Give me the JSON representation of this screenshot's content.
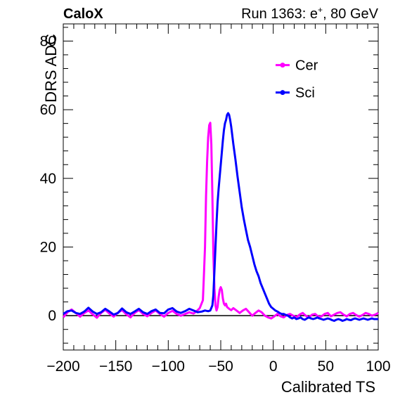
{
  "header": {
    "left_label": "CaloX",
    "right_label_prefix": "Run 1363: e",
    "right_label_sup": "+",
    "right_label_suffix": ", 80 GeV"
  },
  "chart_data": {
    "type": "line",
    "xlabel": "Calibrated TS",
    "ylabel": "DRS ADC",
    "xlim": [
      -200,
      100
    ],
    "ylim": [
      -10,
      85
    ],
    "x_ticks": [
      -200,
      -150,
      -100,
      -50,
      0,
      50,
      100
    ],
    "x_tick_labels": [
      "−200",
      "−150",
      "−100",
      "−50",
      "0",
      "50",
      "100"
    ],
    "y_ticks": [
      0,
      20,
      40,
      60,
      80
    ],
    "y_tick_labels": [
      "0",
      "20",
      "40",
      "60",
      "80"
    ],
    "zero_line": true,
    "grid": false,
    "legend_position": "top-right",
    "series": [
      {
        "name": "Cer",
        "color": "#ff00ff",
        "points": [
          [
            -200,
            -0.5
          ],
          [
            -196,
            1.0
          ],
          [
            -192,
            1.8
          ],
          [
            -188,
            0.8
          ],
          [
            -184,
            -0.3
          ],
          [
            -180,
            0.8
          ],
          [
            -176,
            1.5
          ],
          [
            -172,
            0.4
          ],
          [
            -168,
            -0.6
          ],
          [
            -164,
            0.8
          ],
          [
            -160,
            1.7
          ],
          [
            -156,
            0.6
          ],
          [
            -152,
            -0.3
          ],
          [
            -148,
            0.9
          ],
          [
            -144,
            1.6
          ],
          [
            -140,
            0.4
          ],
          [
            -136,
            -0.5
          ],
          [
            -132,
            0.8
          ],
          [
            -128,
            1.6
          ],
          [
            -124,
            0.5
          ],
          [
            -120,
            -0.2
          ],
          [
            -116,
            0.8
          ],
          [
            -112,
            1.5
          ],
          [
            -108,
            0.5
          ],
          [
            -104,
            -0.3
          ],
          [
            -100,
            0.8
          ],
          [
            -96,
            1.4
          ],
          [
            -92,
            0.5
          ],
          [
            -88,
            0.0
          ],
          [
            -84,
            0.5
          ],
          [
            -80,
            1.0
          ],
          [
            -76,
            0.6
          ],
          [
            -73,
            1.3
          ],
          [
            -70,
            2.2
          ],
          [
            -67,
            4.5
          ],
          [
            -66,
            12.0
          ],
          [
            -65,
            20.0
          ],
          [
            -64,
            35.0
          ],
          [
            -63,
            45.0
          ],
          [
            -62,
            52.0
          ],
          [
            -61,
            55.5
          ],
          [
            -60,
            56.2
          ],
          [
            -59,
            50.0
          ],
          [
            -58,
            35.0
          ],
          [
            -57,
            18.0
          ],
          [
            -56,
            8.0
          ],
          [
            -55,
            3.0
          ],
          [
            -54,
            1.5
          ],
          [
            -53,
            2.5
          ],
          [
            -52,
            5.5
          ],
          [
            -51,
            7.5
          ],
          [
            -50,
            8.3
          ],
          [
            -49,
            7.5
          ],
          [
            -48,
            5.0
          ],
          [
            -47,
            3.5
          ],
          [
            -46,
            3.0
          ],
          [
            -45,
            3.5
          ],
          [
            -44,
            2.5
          ],
          [
            -42,
            2.0
          ],
          [
            -40,
            1.6
          ],
          [
            -38,
            2.2
          ],
          [
            -35,
            1.5
          ],
          [
            -32,
            0.8
          ],
          [
            -29,
            1.5
          ],
          [
            -26,
            2.0
          ],
          [
            -23,
            1.0
          ],
          [
            -20,
            0.0
          ],
          [
            -17,
            0.8
          ],
          [
            -14,
            1.5
          ],
          [
            -11,
            1.0
          ],
          [
            -8,
            0.0
          ],
          [
            -5,
            -0.5
          ],
          [
            -2,
            -0.8
          ],
          [
            1,
            -0.2
          ],
          [
            4,
            0.5
          ],
          [
            7,
            -0.2
          ],
          [
            10,
            -0.5
          ],
          [
            13,
            0.2
          ],
          [
            16,
            0.5
          ],
          [
            19,
            0.0
          ],
          [
            22,
            -0.5
          ],
          [
            25,
            0.3
          ],
          [
            28,
            0.8
          ],
          [
            31,
            0.0
          ],
          [
            34,
            -0.5
          ],
          [
            37,
            0.3
          ],
          [
            40,
            0.5
          ],
          [
            43,
            -0.3
          ],
          [
            46,
            -0.2
          ],
          [
            49,
            0.5
          ],
          [
            52,
            0.8
          ],
          [
            55,
            -0.2
          ],
          [
            58,
            0.3
          ],
          [
            61,
            0.8
          ],
          [
            64,
            1.0
          ],
          [
            67,
            0.3
          ],
          [
            70,
            -0.2
          ],
          [
            73,
            0.5
          ],
          [
            76,
            0.8
          ],
          [
            79,
            0.2
          ],
          [
            82,
            -0.3
          ],
          [
            85,
            0.2
          ],
          [
            88,
            0.8
          ],
          [
            91,
            0.5
          ],
          [
            94,
            0.0
          ],
          [
            97,
            0.3
          ],
          [
            100,
            0.8
          ]
        ]
      },
      {
        "name": "Sci",
        "color": "#0000ff",
        "points": [
          [
            -200,
            0.5
          ],
          [
            -196,
            1.3
          ],
          [
            -192,
            1.5
          ],
          [
            -188,
            0.8
          ],
          [
            -184,
            0.5
          ],
          [
            -180,
            1.2
          ],
          [
            -176,
            2.3
          ],
          [
            -172,
            1.2
          ],
          [
            -168,
            0.5
          ],
          [
            -164,
            1.0
          ],
          [
            -160,
            2.0
          ],
          [
            -156,
            1.2
          ],
          [
            -152,
            0.3
          ],
          [
            -148,
            0.8
          ],
          [
            -144,
            2.1
          ],
          [
            -140,
            1.0
          ],
          [
            -136,
            0.5
          ],
          [
            -132,
            1.2
          ],
          [
            -128,
            2.0
          ],
          [
            -124,
            1.0
          ],
          [
            -120,
            0.5
          ],
          [
            -116,
            1.3
          ],
          [
            -112,
            1.8
          ],
          [
            -108,
            0.8
          ],
          [
            -104,
            0.7
          ],
          [
            -100,
            1.8
          ],
          [
            -96,
            2.2
          ],
          [
            -92,
            1.2
          ],
          [
            -88,
            0.8
          ],
          [
            -84,
            1.3
          ],
          [
            -80,
            2.0
          ],
          [
            -76,
            1.5
          ],
          [
            -72,
            1.0
          ],
          [
            -68,
            1.2
          ],
          [
            -65,
            1.5
          ],
          [
            -62,
            1.3
          ],
          [
            -60,
            1.5
          ],
          [
            -58,
            3.0
          ],
          [
            -57,
            6.0
          ],
          [
            -56,
            13.0
          ],
          [
            -55,
            20.0
          ],
          [
            -54,
            27.0
          ],
          [
            -53,
            33.0
          ],
          [
            -52,
            37.0
          ],
          [
            -51,
            40.5
          ],
          [
            -50,
            44.0
          ],
          [
            -49,
            47.5
          ],
          [
            -48,
            51.0
          ],
          [
            -47,
            54.0
          ],
          [
            -46,
            56.0
          ],
          [
            -45,
            57.0
          ],
          [
            -44,
            58.5
          ],
          [
            -43,
            59.0
          ],
          [
            -42,
            58.5
          ],
          [
            -41,
            57.0
          ],
          [
            -40,
            55.0
          ],
          [
            -38,
            50.0
          ],
          [
            -36,
            45.5
          ],
          [
            -34,
            40.5
          ],
          [
            -32,
            36.0
          ],
          [
            -30,
            31.5
          ],
          [
            -28,
            28.0
          ],
          [
            -26,
            25.0
          ],
          [
            -24,
            22.0
          ],
          [
            -22,
            20.0
          ],
          [
            -20,
            17.5
          ],
          [
            -18,
            15.0
          ],
          [
            -16,
            13.0
          ],
          [
            -14,
            11.5
          ],
          [
            -12,
            9.5
          ],
          [
            -10,
            8.0
          ],
          [
            -8,
            6.5
          ],
          [
            -6,
            5.0
          ],
          [
            -4,
            3.5
          ],
          [
            -2,
            2.5
          ],
          [
            0,
            2.0
          ],
          [
            2,
            1.5
          ],
          [
            4,
            1.2
          ],
          [
            6,
            0.8
          ],
          [
            8,
            0.5
          ],
          [
            10,
            0.5
          ],
          [
            12,
            0.2
          ],
          [
            14,
            0.0
          ],
          [
            16,
            -0.5
          ],
          [
            18,
            -0.8
          ],
          [
            20,
            -0.5
          ],
          [
            22,
            -1.0
          ],
          [
            24,
            -0.8
          ],
          [
            26,
            -0.5
          ],
          [
            28,
            -1.0
          ],
          [
            30,
            -1.2
          ],
          [
            32,
            -0.8
          ],
          [
            34,
            -0.5
          ],
          [
            36,
            -0.8
          ],
          [
            38,
            -1.0
          ],
          [
            40,
            -0.8
          ],
          [
            42,
            -0.5
          ],
          [
            44,
            -0.8
          ],
          [
            46,
            -1.0
          ],
          [
            48,
            -1.2
          ],
          [
            50,
            -1.0
          ],
          [
            52,
            -0.8
          ],
          [
            54,
            -1.0
          ],
          [
            56,
            -1.3
          ],
          [
            58,
            -1.5
          ],
          [
            60,
            -1.2
          ],
          [
            62,
            -1.0
          ],
          [
            64,
            -1.2
          ],
          [
            66,
            -1.5
          ],
          [
            68,
            -1.3
          ],
          [
            70,
            -1.0
          ],
          [
            72,
            -1.2
          ],
          [
            74,
            -1.3
          ],
          [
            76,
            -1.0
          ],
          [
            78,
            -0.8
          ],
          [
            80,
            -1.0
          ],
          [
            82,
            -1.2
          ],
          [
            84,
            -1.0
          ],
          [
            86,
            -0.8
          ],
          [
            88,
            -1.0
          ],
          [
            90,
            -1.2
          ],
          [
            92,
            -1.0
          ],
          [
            94,
            -0.8
          ],
          [
            96,
            -1.0
          ],
          [
            98,
            -1.0
          ],
          [
            100,
            -1.0
          ]
        ]
      }
    ]
  }
}
